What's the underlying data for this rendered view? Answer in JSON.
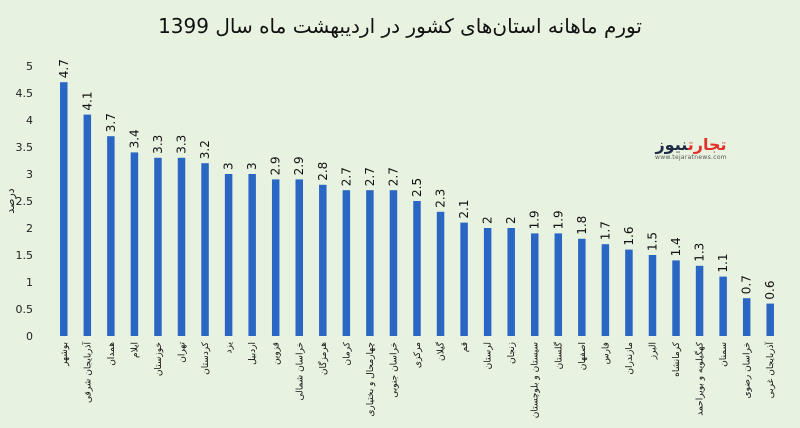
{
  "chart_data": {
    "type": "bar",
    "title": "تورم ماهانه استان‌های کشور در اردیبهشت ماه سال 1399",
    "ylabel": "درصد",
    "xlabel": "",
    "ylim": [
      0,
      5
    ],
    "yticks": [
      "0",
      "0.5",
      "1",
      "1.5",
      "2",
      "2.5",
      "3",
      "3.5",
      "4",
      "4.5",
      "5"
    ],
    "grid": false,
    "bar_color": "#2a66c4",
    "categories": [
      "بوشهر",
      "آذربایجان شرقی",
      "همدان",
      "ایلام",
      "خوزستان",
      "تهران",
      "کردستان",
      "یزد",
      "اردبیل",
      "قزوین",
      "خراسان شمالی",
      "هرمزگان",
      "کرمان",
      "چهارمحال و بختیاری",
      "خراسان جنوبی",
      "مرکزی",
      "گیلان",
      "قم",
      "لرستان",
      "زنجان",
      "سیستان و بلوچستان",
      "گلستان",
      "اصفهان",
      "فارس",
      "مازندران",
      "البرز",
      "کرمانشاه",
      "کهگیلویه و بویراحمد",
      "سمنان",
      "خراسان رضوی",
      "آذربایجان غربی"
    ],
    "values": [
      4.7,
      4.1,
      3.7,
      3.4,
      3.3,
      3.3,
      3.2,
      3,
      3,
      2.9,
      2.9,
      2.8,
      2.7,
      2.7,
      2.7,
      2.5,
      2.3,
      2.1,
      2,
      2,
      1.9,
      1.9,
      1.8,
      1.7,
      1.6,
      1.5,
      1.4,
      1.3,
      1.1,
      0.7,
      0.6
    ],
    "data_labels": [
      "4.7",
      "4.1",
      "3.7",
      "3.4",
      "3.3",
      "3.3",
      "3.2",
      "3",
      "3",
      "2.9",
      "2.9",
      "2.8",
      "2.7",
      "2.7",
      "2.7",
      "2.5",
      "2.3",
      "2.1",
      "2",
      "2",
      "1.9",
      "1.9",
      "1.8",
      "1.7",
      "1.6",
      "1.5",
      "1.4",
      "1.3",
      "1.1",
      "0.7",
      "0.6"
    ]
  },
  "logo": {
    "accent": "تجارت",
    "main": "نیوز",
    "sub": "www.tejaratnews.com"
  }
}
